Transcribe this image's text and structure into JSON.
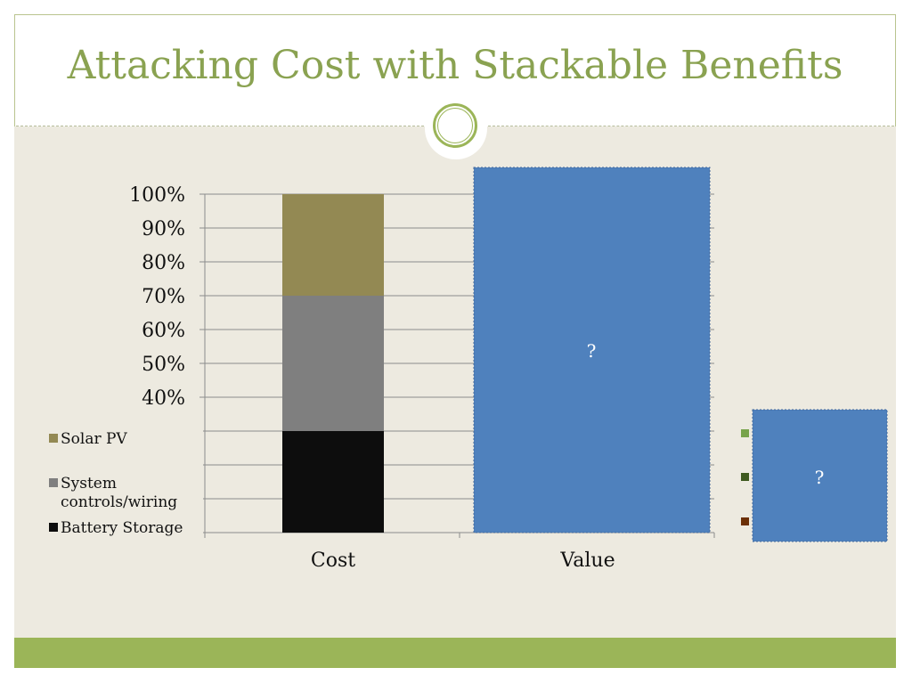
{
  "slide": {
    "title": "Attacking Cost with Stackable Benefits"
  },
  "colors": {
    "title": "#8aa251",
    "footer": "#9bb558",
    "background": "#edeae0",
    "value_box": "#4f81bd"
  },
  "chart_data": {
    "type": "bar",
    "stacked": true,
    "categories": [
      "Cost",
      "Value"
    ],
    "ylim": [
      0,
      100
    ],
    "y_ticks_shown": [
      "100%",
      "90%",
      "80%",
      "70%",
      "60%",
      "50%",
      "40%"
    ],
    "y_ticks_all": [
      0,
      10,
      20,
      30,
      40,
      50,
      60,
      70,
      80,
      90,
      100
    ],
    "series": [
      {
        "name": "Battery Storage",
        "color": "#0d0d0d",
        "values": [
          30,
          null
        ]
      },
      {
        "name": "System controls/wiring",
        "color": "#7f7f7f",
        "values": [
          40,
          null
        ]
      },
      {
        "name": "Solar PV",
        "color": "#938953",
        "values": [
          30,
          null
        ]
      }
    ],
    "legend": [
      {
        "label": "Solar PV",
        "color": "#938953"
      },
      {
        "label": "System controls/wiring",
        "label_lines": [
          "System",
          "controls/wiring"
        ],
        "color": "#7f7f7f"
      },
      {
        "label": "Battery Storage",
        "color": "#0d0d0d"
      }
    ],
    "value_overlay_text": "?",
    "right_legend_colors": [
      "#77a34a",
      "#3f5a1f",
      "#6b2f06"
    ],
    "right_overlay_text": "?",
    "grid": true,
    "legend_position": "left"
  }
}
